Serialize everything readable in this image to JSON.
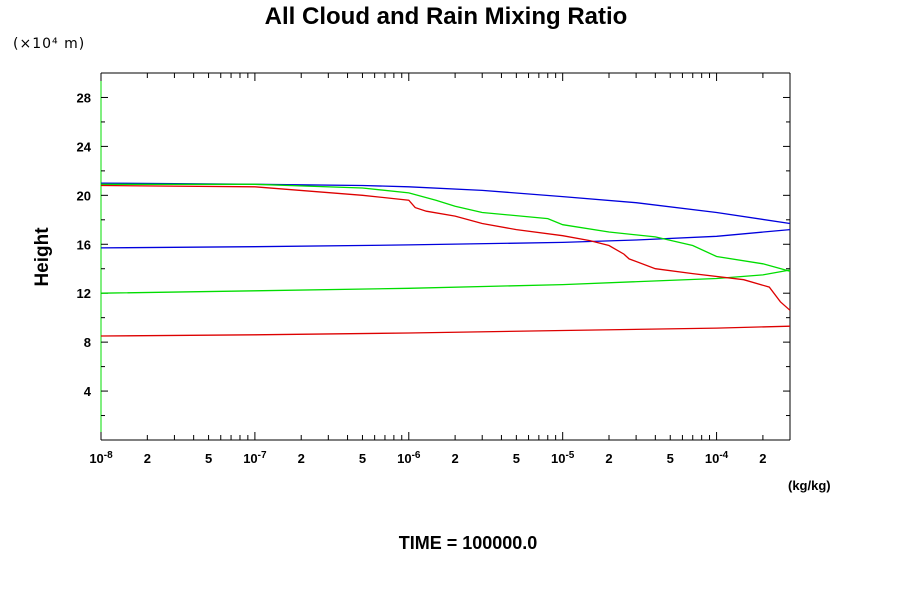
{
  "chart_data": {
    "type": "line",
    "title": "All Cloud and Rain Mixing Ratio",
    "y_unit_label": "(×10⁴ m)",
    "ylabel": "Height",
    "x_unit_label": "(kg/kg)",
    "footer": "TIME = 100000.0",
    "xscale": "log",
    "xlim": [
      1e-08,
      0.0003
    ],
    "ylim": [
      0,
      30
    ],
    "grid": false,
    "legend": "none",
    "y_ticks": [
      4,
      8,
      12,
      16,
      20,
      24,
      28
    ],
    "y_tick_labels": [
      "4",
      "8",
      "12",
      "16",
      "20",
      "24",
      "28"
    ],
    "x_major_ticks": [
      {
        "mant": "10",
        "exp": "-8",
        "value": 1e-08
      },
      {
        "mant": "10",
        "exp": "-7",
        "value": 1e-07
      },
      {
        "mant": "10",
        "exp": "-6",
        "value": 1e-06
      },
      {
        "mant": "10",
        "exp": "-5",
        "value": 1e-05
      },
      {
        "mant": "10",
        "exp": "-4",
        "value": 0.0001
      }
    ],
    "x_minor_labels": [
      {
        "label": "2",
        "value": 2e-08
      },
      {
        "label": "5",
        "value": 5e-08
      },
      {
        "label": "2",
        "value": 2e-07
      },
      {
        "label": "5",
        "value": 5e-07
      },
      {
        "label": "2",
        "value": 2e-06
      },
      {
        "label": "5",
        "value": 5e-06
      },
      {
        "label": "2",
        "value": 2e-05
      },
      {
        "label": "5",
        "value": 5e-05
      },
      {
        "label": "2",
        "value": 0.0002
      }
    ],
    "series": [
      {
        "color": "#0000dd",
        "points": [
          [
            1e-08,
            21.0
          ],
          [
            1e-07,
            20.9
          ],
          [
            5e-07,
            20.8
          ],
          [
            1e-06,
            20.7
          ],
          [
            3e-06,
            20.4
          ],
          [
            1e-05,
            19.9
          ],
          [
            3e-05,
            19.4
          ],
          [
            0.0001,
            18.6
          ],
          [
            0.0003,
            17.7
          ]
        ]
      },
      {
        "color": "#0000dd",
        "points": [
          [
            1e-08,
            15.7
          ],
          [
            1e-07,
            15.8
          ],
          [
            1e-06,
            15.95
          ],
          [
            1e-05,
            16.15
          ],
          [
            3e-05,
            16.35
          ],
          [
            0.0001,
            16.65
          ],
          [
            0.0003,
            17.2
          ]
        ]
      },
      {
        "color": "#00dd00",
        "points": [
          [
            1e-08,
            20.9
          ],
          [
            1e-07,
            20.9
          ],
          [
            5e-07,
            20.6
          ],
          [
            1e-06,
            20.2
          ],
          [
            1.5e-06,
            19.6
          ],
          [
            2e-06,
            19.1
          ],
          [
            3e-06,
            18.6
          ],
          [
            8e-06,
            18.1
          ],
          [
            1e-05,
            17.6
          ],
          [
            2e-05,
            17.0
          ],
          [
            4e-05,
            16.6
          ],
          [
            7e-05,
            15.9
          ],
          [
            0.0001,
            15.0
          ],
          [
            0.0002,
            14.4
          ],
          [
            0.0003,
            13.8
          ]
        ]
      },
      {
        "color": "#00dd00",
        "points": [
          [
            1e-08,
            12.0
          ],
          [
            1e-07,
            12.2
          ],
          [
            1e-06,
            12.4
          ],
          [
            1e-05,
            12.7
          ],
          [
            0.0001,
            13.2
          ],
          [
            0.0002,
            13.5
          ],
          [
            0.0003,
            13.9
          ]
        ]
      },
      {
        "color": "#dd0000",
        "points": [
          [
            1e-08,
            20.8
          ],
          [
            1e-07,
            20.7
          ],
          [
            5e-07,
            20.0
          ],
          [
            1e-06,
            19.6
          ],
          [
            1.1e-06,
            19.0
          ],
          [
            1.3e-06,
            18.7
          ],
          [
            2e-06,
            18.3
          ],
          [
            3e-06,
            17.7
          ],
          [
            5e-06,
            17.2
          ],
          [
            1e-05,
            16.7
          ],
          [
            1.5e-05,
            16.3
          ],
          [
            2e-05,
            15.9
          ],
          [
            2.5e-05,
            15.2
          ],
          [
            2.7e-05,
            14.8
          ],
          [
            4e-05,
            14.0
          ],
          [
            7e-05,
            13.6
          ],
          [
            0.00015,
            13.1
          ],
          [
            0.00022,
            12.5
          ],
          [
            0.00026,
            11.3
          ],
          [
            0.0003,
            10.6
          ]
        ]
      },
      {
        "color": "#dd0000",
        "points": [
          [
            1e-08,
            8.5
          ],
          [
            1e-07,
            8.6
          ],
          [
            1e-06,
            8.75
          ],
          [
            1e-05,
            8.95
          ],
          [
            0.0001,
            9.15
          ],
          [
            0.0003,
            9.3
          ]
        ]
      }
    ]
  }
}
